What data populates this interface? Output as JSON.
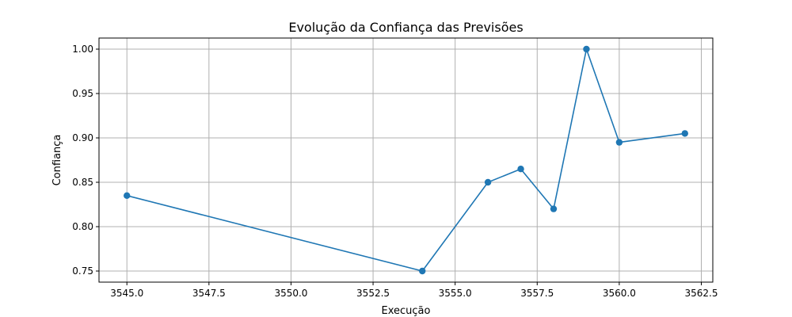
{
  "chart_data": {
    "type": "line",
    "title": "Evolução da Confiança das Previsões",
    "xlabel": "Execução",
    "ylabel": "Confiança",
    "xlim": [
      3544.15,
      3562.85
    ],
    "ylim": [
      0.7375,
      1.0125
    ],
    "x_ticks": [
      3545.0,
      3547.5,
      3550.0,
      3552.5,
      3555.0,
      3557.5,
      3560.0,
      3562.5
    ],
    "x_tick_labels": [
      "3545.0",
      "3547.5",
      "3550.0",
      "3552.5",
      "3555.0",
      "3557.5",
      "3560.0",
      "3562.5"
    ],
    "y_ticks": [
      0.75,
      0.8,
      0.85,
      0.9,
      0.95,
      1.0
    ],
    "y_tick_labels": [
      "0.75",
      "0.80",
      "0.85",
      "0.90",
      "0.95",
      "1.00"
    ],
    "grid": true,
    "series": [
      {
        "name": "Confiança",
        "color": "#1f77b4",
        "marker": "circle",
        "x": [
          3545,
          3554,
          3556,
          3557,
          3558,
          3559,
          3560,
          3562
        ],
        "y": [
          0.835,
          0.75,
          0.85,
          0.865,
          0.82,
          1.0,
          0.895,
          0.905
        ]
      }
    ]
  }
}
